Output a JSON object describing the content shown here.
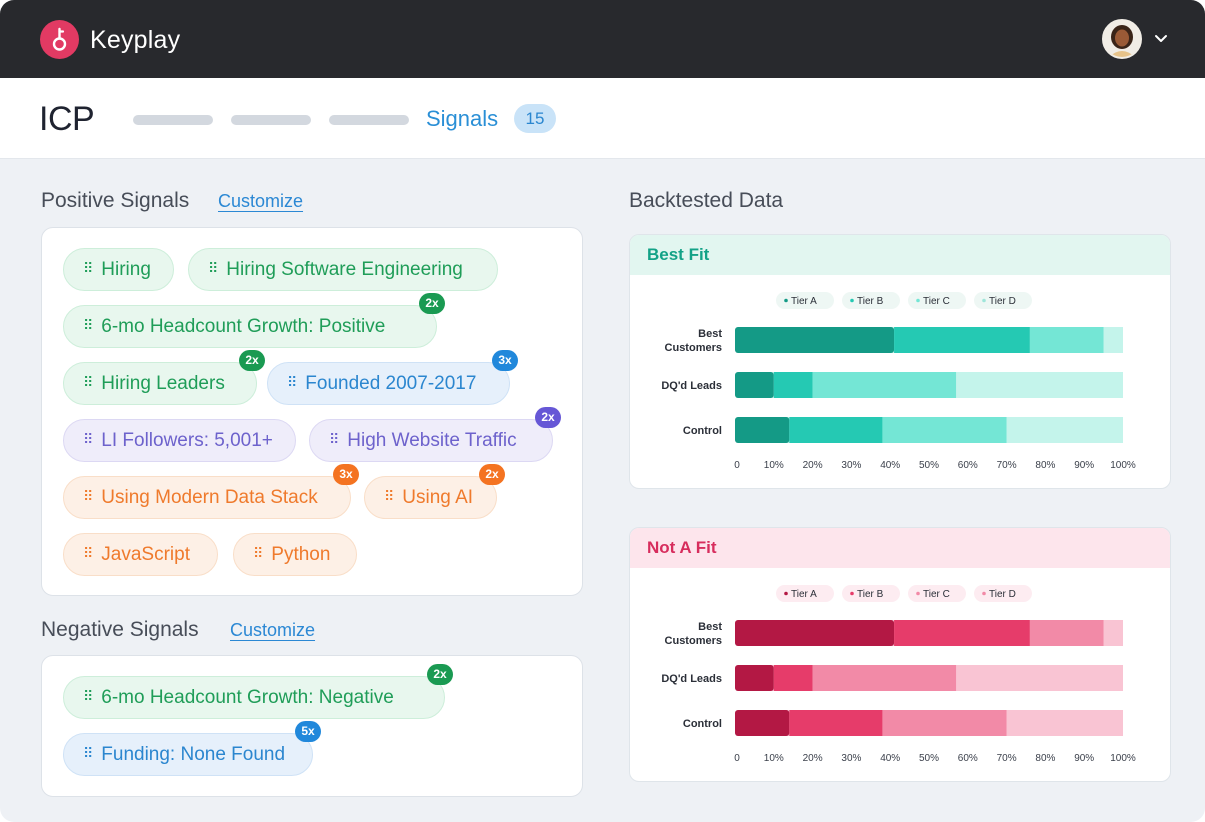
{
  "brand": {
    "name": "Keyplay"
  },
  "header": {
    "title": "ICP",
    "active_tab": "Signals",
    "active_tab_count": "15"
  },
  "positive": {
    "title": "Positive Signals",
    "customize_label": "Customize",
    "chips": [
      {
        "label": "Hiring",
        "color": "green",
        "badge": ""
      },
      {
        "label": "Hiring Software Engineering",
        "color": "green",
        "badge": ""
      },
      {
        "label": "6-mo  Headcount Growth: Positive",
        "color": "green",
        "badge": "2x"
      },
      {
        "label": "Hiring Leaders",
        "color": "green",
        "badge": "2x"
      },
      {
        "label": "Founded 2007-2017",
        "color": "blue",
        "badge": "3x"
      },
      {
        "label": "LI Followers: 5,001+",
        "color": "purple",
        "badge": ""
      },
      {
        "label": "High Website Traffic",
        "color": "purple",
        "badge": "2x"
      },
      {
        "label": "Using Modern Data Stack",
        "color": "orange",
        "badge": "3x"
      },
      {
        "label": "Using AI",
        "color": "orange",
        "badge": "2x"
      },
      {
        "label": "JavaScript",
        "color": "orange",
        "badge": ""
      },
      {
        "label": "Python",
        "color": "orange",
        "badge": ""
      }
    ]
  },
  "negative": {
    "title": "Negative Signals",
    "customize_label": "Customize",
    "chips": [
      {
        "label": "6-mo  Headcount Growth: Negative",
        "color": "green",
        "badge": "2x"
      },
      {
        "label": "Funding: None Found",
        "color": "blue",
        "badge": "5x"
      }
    ]
  },
  "backtested": {
    "title": "Backtested Data"
  },
  "chart_data": [
    {
      "type": "bar",
      "stacked": true,
      "orientation": "horizontal",
      "title": "Best Fit",
      "categories": [
        "Best Customers",
        "DQ'd Leads",
        "Control"
      ],
      "series": [
        {
          "name": "Tier A",
          "values": [
            41,
            10,
            14
          ]
        },
        {
          "name": "Tier B",
          "values": [
            35,
            10,
            24
          ]
        },
        {
          "name": "Tier C",
          "values": [
            19,
            37,
            32
          ]
        },
        {
          "name": "Tier D",
          "values": [
            5,
            43,
            30
          ]
        }
      ],
      "xticks": [
        "0",
        "10%",
        "20%",
        "30%",
        "40%",
        "50%",
        "60%",
        "70%",
        "80%",
        "90%",
        "100%"
      ],
      "xlim": [
        0,
        100
      ],
      "legend": "top",
      "colors": [
        "#149a86",
        "#25c9b3",
        "#74e6d5",
        "#c4f4eb"
      ],
      "header_bg": "#e2f6f0",
      "header_color": "#13a287"
    },
    {
      "type": "bar",
      "stacked": true,
      "orientation": "horizontal",
      "title": "Not A Fit",
      "categories": [
        "Best Customers",
        "DQ'd Leads",
        "Control"
      ],
      "series": [
        {
          "name": "Tier A",
          "values": [
            41,
            10,
            14
          ]
        },
        {
          "name": "Tier B",
          "values": [
            35,
            10,
            24
          ]
        },
        {
          "name": "Tier C",
          "values": [
            19,
            37,
            32
          ]
        },
        {
          "name": "Tier D",
          "values": [
            5,
            43,
            30
          ]
        }
      ],
      "xticks": [
        "0",
        "10%",
        "20%",
        "30%",
        "40%",
        "50%",
        "60%",
        "70%",
        "80%",
        "90%",
        "100%"
      ],
      "xlim": [
        0,
        100
      ],
      "legend": "top",
      "colors": [
        "#b31844",
        "#e63c6a",
        "#f28aa7",
        "#f9c4d3"
      ],
      "header_bg": "#fde5ec",
      "header_color": "#d72d5d"
    }
  ]
}
